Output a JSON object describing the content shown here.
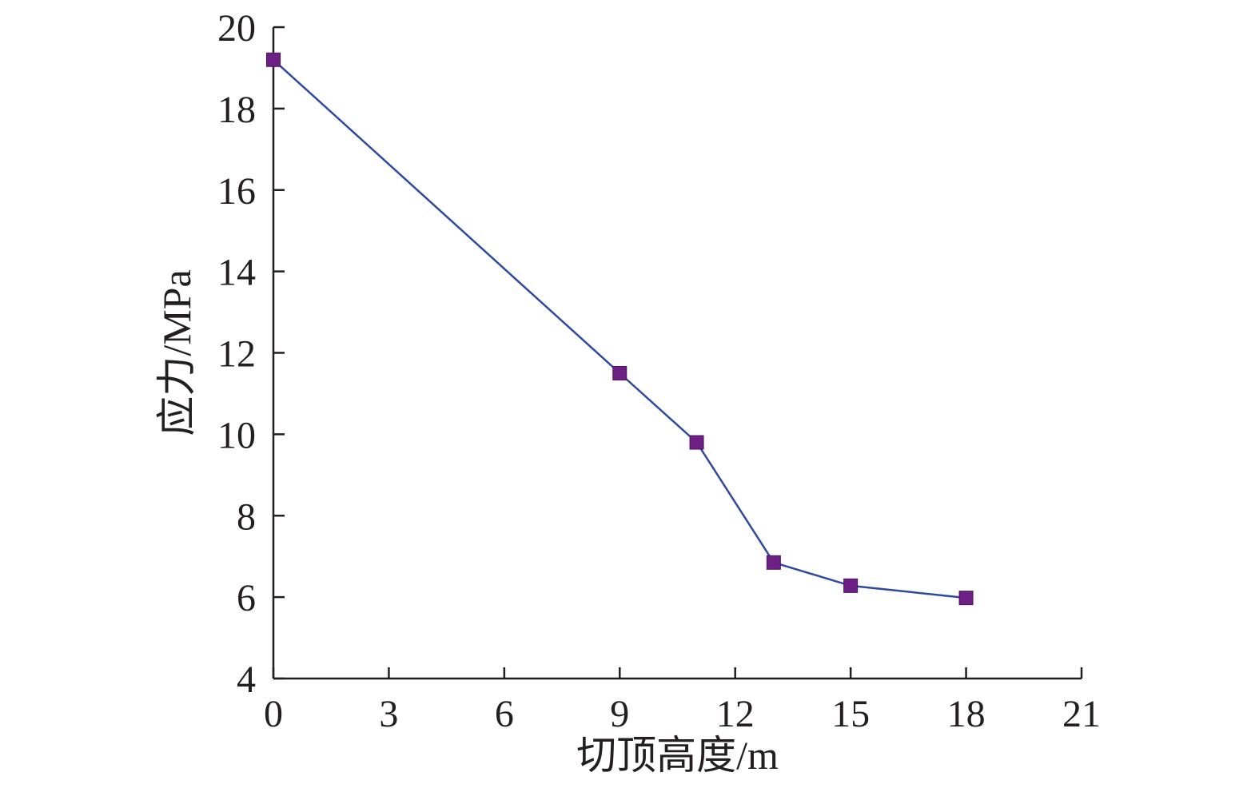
{
  "chart_data": {
    "type": "line",
    "xlabel": "切顶高度/m",
    "ylabel": "应力/MPa",
    "xlim": [
      0,
      21
    ],
    "ylim": [
      4,
      20
    ],
    "x_ticks": [
      0,
      3,
      6,
      9,
      12,
      15,
      18,
      21
    ],
    "y_ticks": [
      4,
      6,
      8,
      10,
      12,
      14,
      16,
      18,
      20
    ],
    "grid": false,
    "series": [
      {
        "x": [
          0,
          9,
          11,
          13,
          15,
          18
        ],
        "values": [
          19.2,
          11.5,
          9.8,
          6.85,
          6.28,
          5.98
        ],
        "line_color": "#2e4a9e",
        "marker": "square",
        "marker_color": "#6d1f86"
      }
    ]
  }
}
